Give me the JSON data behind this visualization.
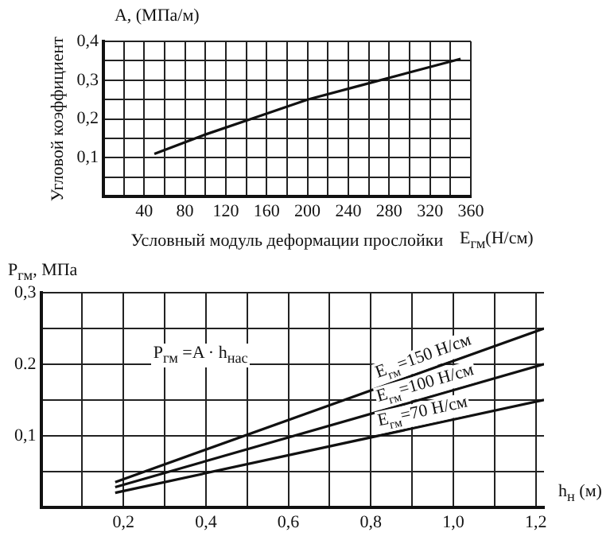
{
  "chart_data": [
    {
      "type": "line",
      "ylabel": "Угловой коэффициент",
      "xlabel": "Условный модуль деформации прослойки",
      "annotations": [
        "A, (МПа/м)",
        "E$_{гм}$(Н/см)"
      ],
      "x": [
        50,
        100,
        150,
        200,
        250,
        300,
        350
      ],
      "series": [
        {
          "color": "#111111",
          "values": [
            0.11,
            0.16,
            0.205,
            0.25,
            0.285,
            0.32,
            0.355
          ]
        }
      ],
      "xlim": [
        0,
        360
      ],
      "xticks": [
        {
          "value": 0,
          "label": null
        },
        {
          "value": 20,
          "label": null
        },
        40,
        {
          "value": 60,
          "label": null
        },
        80,
        {
          "value": 100,
          "label": null
        },
        120,
        {
          "value": 140,
          "label": null
        },
        160,
        {
          "value": 180,
          "label": null
        },
        200,
        {
          "value": 220,
          "label": null
        },
        240,
        {
          "value": 260,
          "label": null
        },
        280,
        {
          "value": 300,
          "label": null
        },
        320,
        {
          "value": 340,
          "label": null
        },
        360
      ],
      "ylim": [
        0,
        0.4
      ],
      "yticks": [
        {
          "value": 0,
          "label": null
        },
        {
          "value": 0.05,
          "label": null
        },
        {
          "value": 0.1,
          "label": "0,1"
        },
        {
          "value": 0.15,
          "label": null
        },
        {
          "value": 0.2,
          "label": "0,2"
        },
        {
          "value": 0.25,
          "label": null
        },
        {
          "value": 0.3,
          "label": "0,3"
        },
        {
          "value": 0.35,
          "label": null
        },
        {
          "value": 0.4,
          "label": "0,4"
        }
      ],
      "grid": true,
      "legend": false,
      "marker": "none",
      "line_style": "solid"
    },
    {
      "type": "line",
      "ylabel": "P$_{гм}$, МПа",
      "xlabel": "h$_{н}$ (м)",
      "annotations": [
        "P$_{гм}$ =A · h$_{нас}$"
      ],
      "x": [
        0.18,
        1.22
      ],
      "series": [
        {
          "name": "E$_{гм}$=150 Н/см",
          "color": "#111111",
          "values": [
            0.035,
            0.25
          ]
        },
        {
          "name": "E$_{гм}$=100 Н/см",
          "color": "#111111",
          "values": [
            0.028,
            0.2
          ]
        },
        {
          "name": "E$_{гм}$=70 Н/см",
          "color": "#111111",
          "values": [
            0.02,
            0.15
          ]
        }
      ],
      "xlim": [
        0,
        1.22
      ],
      "xticks": [
        {
          "value": 0,
          "label": null
        },
        {
          "value": 0.1,
          "label": null
        },
        {
          "value": 0.2,
          "label": "0,2"
        },
        {
          "value": 0.3,
          "label": null
        },
        {
          "value": 0.4,
          "label": "0,4"
        },
        {
          "value": 0.5,
          "label": null
        },
        {
          "value": 0.6,
          "label": "0,6"
        },
        {
          "value": 0.7,
          "label": null
        },
        {
          "value": 0.8,
          "label": "0,8"
        },
        {
          "value": 0.9,
          "label": null
        },
        {
          "value": 1.0,
          "label": "1,0"
        },
        {
          "value": 1.1,
          "label": null
        },
        {
          "value": 1.2,
          "label": "1,2"
        }
      ],
      "ylim": [
        0,
        0.3
      ],
      "yticks": [
        {
          "value": 0,
          "label": null
        },
        {
          "value": 0.05,
          "label": null
        },
        {
          "value": 0.1,
          "label": "0,1"
        },
        {
          "value": 0.15,
          "label": null
        },
        {
          "value": 0.2,
          "label": "0.2"
        },
        {
          "value": 0.25,
          "label": null
        },
        {
          "value": 0.3,
          "label": "0,3"
        }
      ],
      "grid": true,
      "legend": false,
      "marker": "none",
      "line_style": "solid"
    }
  ]
}
